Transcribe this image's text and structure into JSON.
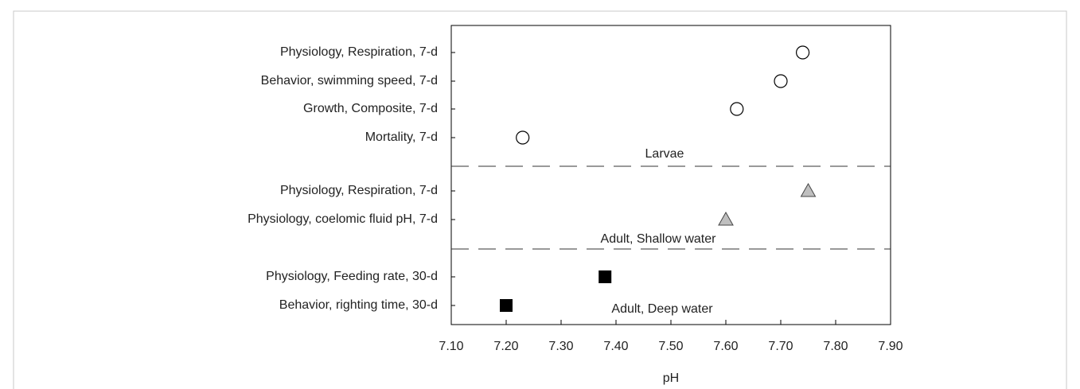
{
  "chart_data": {
    "type": "scatter",
    "categories": [
      "Physiology, Respiration, 7-d",
      "Behavior, swimming speed, 7-d",
      "Growth, Composite, 7-d",
      "Mortality, 7-d",
      "Physiology, Respiration, 7-d",
      "Physiology, coelomic fluid pH, 7-d",
      "Physiology, Feeding rate, 30-d",
      "Behavior, righting time, 30-d"
    ],
    "series": [
      {
        "name": "Larvae",
        "marker": "circle",
        "color": "#ffffff",
        "values": [
          7.74,
          7.7,
          7.62,
          7.23,
          null,
          null,
          null,
          null
        ]
      },
      {
        "name": "Adult, Shallow water",
        "marker": "triangle",
        "color": "#bfbfbf",
        "values": [
          null,
          null,
          null,
          null,
          7.75,
          7.6,
          null,
          null
        ]
      },
      {
        "name": "Adult, Deep water",
        "marker": "square",
        "color": "#000000",
        "values": [
          null,
          null,
          null,
          null,
          null,
          null,
          7.38,
          7.2
        ]
      }
    ],
    "xlabel": "pH",
    "xlim": [
      7.1,
      7.9
    ],
    "xticks": [
      {
        "value": 7.1,
        "label": "7.10"
      },
      {
        "value": 7.2,
        "label": "7.20"
      },
      {
        "value": 7.3,
        "label": "7.30"
      },
      {
        "value": 7.4,
        "label": "7.40"
      },
      {
        "value": 7.5,
        "label": "7.50"
      },
      {
        "value": 7.6,
        "label": "7.60"
      },
      {
        "value": 7.7,
        "label": "7.70"
      },
      {
        "value": 7.8,
        "label": "7.80"
      },
      {
        "value": 7.9,
        "label": "7.90"
      }
    ]
  }
}
